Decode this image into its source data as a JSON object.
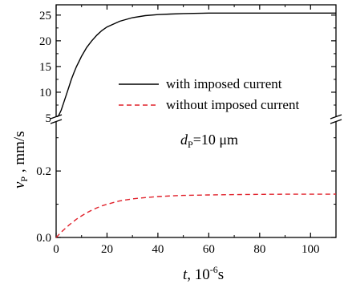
{
  "chart_data": {
    "type": "line",
    "broken_y_axis": true,
    "x": [
      0,
      1,
      2,
      3,
      4,
      5,
      6,
      7,
      8,
      9,
      10,
      12,
      14,
      16,
      18,
      20,
      25,
      30,
      35,
      40,
      45,
      50,
      60,
      70,
      80,
      90,
      100,
      110
    ],
    "series": [
      {
        "name": "with imposed current",
        "color": "#000000",
        "dash": "solid",
        "panel": "upper",
        "values": [
          5,
          5.5,
          6.5,
          8.0,
          9.5,
          11.0,
          12.5,
          13.8,
          15.0,
          16.0,
          17.0,
          18.7,
          20.0,
          21.1,
          22.0,
          22.7,
          23.8,
          24.5,
          24.9,
          25.1,
          25.2,
          25.3,
          25.4,
          25.4,
          25.4,
          25.4,
          25.4,
          25.4
        ]
      },
      {
        "name": "without imposed current",
        "color": "#e0202a",
        "dash": "dashed",
        "panel": "lower",
        "values": [
          0,
          0.008,
          0.016,
          0.023,
          0.03,
          0.037,
          0.043,
          0.049,
          0.055,
          0.06,
          0.065,
          0.074,
          0.082,
          0.089,
          0.095,
          0.1,
          0.11,
          0.116,
          0.12,
          0.123,
          0.125,
          0.1265,
          0.128,
          0.129,
          0.1295,
          0.13,
          0.1302,
          0.1303
        ]
      }
    ],
    "xlabel_main": "t",
    "xlabel_unit": ", 10",
    "xlabel_exp": "-6",
    "xlabel_tail": "s",
    "ylabel_main": "v",
    "ylabel_sub": "P",
    "ylabel_unit": " , mm/s",
    "xlim": [
      0,
      110
    ],
    "ylim_upper": [
      5,
      27
    ],
    "ylim_lower": [
      0,
      0.35
    ],
    "x_ticks": [
      0,
      20,
      40,
      60,
      80,
      100
    ],
    "x_tick_labels": [
      "0",
      "20",
      "40",
      "60",
      "80",
      "100"
    ],
    "y_ticks_upper": [
      5,
      10,
      15,
      20,
      25
    ],
    "y_tick_labels_upper": [
      "5",
      "10",
      "15",
      "20",
      "25"
    ],
    "y_ticks_lower": [
      0.0,
      0.2
    ],
    "y_tick_labels_lower": [
      "0.0",
      "0.2"
    ],
    "annotation_main": "d",
    "annotation_sub": "P",
    "annotation_tail": "=10 μm",
    "legend": [
      {
        "label": "with imposed current",
        "color": "#000000",
        "dash": "solid"
      },
      {
        "label": "without imposed current",
        "color": "#e0202a",
        "dash": "dashed"
      }
    ],
    "legend_position": "right",
    "grid": false
  }
}
